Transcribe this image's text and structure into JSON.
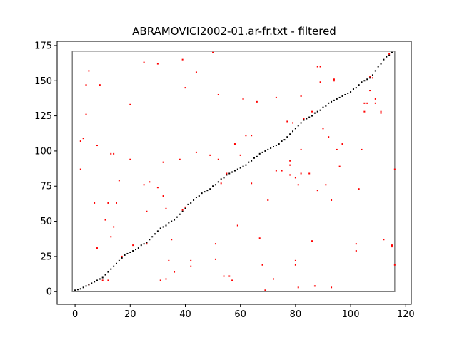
{
  "chart_data": {
    "type": "scatter",
    "title": "ABRAMOVICI2002-01.ar-fr.txt - filtered",
    "xlabel": "",
    "ylabel": "",
    "xlim": [
      -6.5,
      122
    ],
    "ylim": [
      -9,
      178
    ],
    "xticks": [
      0,
      20,
      40,
      60,
      80,
      100,
      120
    ],
    "yticks": [
      0,
      25,
      50,
      75,
      100,
      125,
      150,
      175
    ],
    "grid": false,
    "colors": {
      "alignment": "#000000",
      "candidates": "#ff0000",
      "box": "#808080"
    },
    "box": {
      "x": [
        -1,
        116
      ],
      "y": [
        0,
        171
      ]
    },
    "series": [
      {
        "values": [
          [
            0,
            1
          ],
          [
            1,
            1.5
          ],
          [
            2,
            2
          ],
          [
            3,
            3
          ],
          [
            4,
            4
          ],
          [
            5,
            5
          ],
          [
            6,
            6
          ],
          [
            7,
            7
          ],
          [
            8,
            8
          ],
          [
            9,
            9
          ],
          [
            10,
            10
          ],
          [
            11,
            12
          ],
          [
            12,
            14
          ],
          [
            13,
            16
          ],
          [
            14,
            18
          ],
          [
            15,
            20
          ],
          [
            16,
            22
          ],
          [
            17,
            24
          ],
          [
            18,
            26
          ],
          [
            19,
            27
          ],
          [
            20,
            28
          ],
          [
            21,
            29
          ],
          [
            22,
            30
          ],
          [
            23,
            31
          ],
          [
            24,
            33
          ],
          [
            25,
            34
          ],
          [
            26,
            35
          ],
          [
            27,
            37
          ],
          [
            28,
            39
          ],
          [
            29,
            41
          ],
          [
            30,
            43
          ],
          [
            31,
            45
          ],
          [
            32,
            46
          ],
          [
            33,
            47
          ],
          [
            34,
            49
          ],
          [
            35,
            50
          ],
          [
            36,
            51
          ],
          [
            37,
            53
          ],
          [
            38,
            55
          ],
          [
            39,
            57
          ],
          [
            40,
            59
          ],
          [
            41,
            62
          ],
          [
            42,
            63
          ],
          [
            43,
            65
          ],
          [
            44,
            67
          ],
          [
            45,
            68
          ],
          [
            46,
            70
          ],
          [
            47,
            71
          ],
          [
            48,
            72
          ],
          [
            49,
            73
          ],
          [
            50,
            75
          ],
          [
            51,
            76
          ],
          [
            52,
            78
          ],
          [
            53,
            80
          ],
          [
            54,
            81
          ],
          [
            55,
            83
          ],
          [
            56,
            84
          ],
          [
            57,
            85
          ],
          [
            58,
            86
          ],
          [
            59,
            87
          ],
          [
            60,
            88
          ],
          [
            61,
            89
          ],
          [
            62,
            90
          ],
          [
            63,
            92
          ],
          [
            64,
            93
          ],
          [
            65,
            95
          ],
          [
            66,
            96
          ],
          [
            67,
            98
          ],
          [
            68,
            99
          ],
          [
            69,
            100
          ],
          [
            70,
            101
          ],
          [
            71,
            102
          ],
          [
            72,
            103
          ],
          [
            73,
            104
          ],
          [
            74,
            105
          ],
          [
            75,
            107
          ],
          [
            76,
            108
          ],
          [
            77,
            110
          ],
          [
            78,
            112
          ],
          [
            79,
            114
          ],
          [
            80,
            116
          ],
          [
            81,
            118
          ],
          [
            82,
            120
          ],
          [
            83,
            122
          ],
          [
            84,
            123
          ],
          [
            85,
            124
          ],
          [
            86,
            125
          ],
          [
            87,
            127
          ],
          [
            88,
            128
          ],
          [
            89,
            129
          ],
          [
            90,
            131
          ],
          [
            91,
            132
          ],
          [
            92,
            134
          ],
          [
            93,
            135
          ],
          [
            94,
            136
          ],
          [
            95,
            137
          ],
          [
            96,
            138
          ],
          [
            97,
            139
          ],
          [
            98,
            140
          ],
          [
            99,
            141
          ],
          [
            100,
            142
          ],
          [
            101,
            144
          ],
          [
            102,
            145
          ],
          [
            103,
            147
          ],
          [
            104,
            149
          ],
          [
            105,
            150
          ],
          [
            106,
            151
          ],
          [
            107,
            152
          ],
          [
            108,
            154
          ],
          [
            109,
            157
          ],
          [
            110,
            160
          ],
          [
            111,
            162
          ],
          [
            112,
            165
          ],
          [
            113,
            167
          ],
          [
            114,
            168
          ],
          [
            115,
            170
          ]
        ]
      },
      {
        "values": [
          [
            2,
            87
          ],
          [
            2,
            107
          ],
          [
            3,
            109
          ],
          [
            4,
            147
          ],
          [
            4,
            126
          ],
          [
            5,
            5
          ],
          [
            5,
            157
          ],
          [
            7,
            63
          ],
          [
            8,
            104
          ],
          [
            8,
            31
          ],
          [
            9,
            147
          ],
          [
            10,
            8
          ],
          [
            11,
            51
          ],
          [
            12,
            8
          ],
          [
            12,
            63
          ],
          [
            13,
            39
          ],
          [
            13,
            98
          ],
          [
            14,
            98
          ],
          [
            14,
            46
          ],
          [
            15,
            63
          ],
          [
            16,
            79
          ],
          [
            17,
            25
          ],
          [
            20,
            133
          ],
          [
            20,
            94
          ],
          [
            21,
            33
          ],
          [
            25,
            163
          ],
          [
            25,
            76
          ],
          [
            26,
            57
          ],
          [
            26,
            34
          ],
          [
            27,
            78
          ],
          [
            30,
            162
          ],
          [
            30,
            74
          ],
          [
            31,
            8
          ],
          [
            32,
            92
          ],
          [
            32,
            68
          ],
          [
            33,
            9
          ],
          [
            33,
            59
          ],
          [
            34,
            22
          ],
          [
            35,
            37
          ],
          [
            36,
            14
          ],
          [
            38,
            94
          ],
          [
            39,
            165
          ],
          [
            39,
            58
          ],
          [
            40,
            145
          ],
          [
            40,
            60
          ],
          [
            42,
            18
          ],
          [
            42,
            22
          ],
          [
            44,
            156
          ],
          [
            44,
            99
          ],
          [
            49,
            97
          ],
          [
            50,
            170
          ],
          [
            51,
            34
          ],
          [
            51,
            23
          ],
          [
            52,
            140
          ],
          [
            52,
            94
          ],
          [
            53,
            77
          ],
          [
            54,
            11
          ],
          [
            55,
            84
          ],
          [
            56,
            11
          ],
          [
            57,
            8
          ],
          [
            58,
            105
          ],
          [
            59,
            47
          ],
          [
            60,
            97
          ],
          [
            61,
            137
          ],
          [
            62,
            111
          ],
          [
            64,
            111
          ],
          [
            64,
            77
          ],
          [
            66,
            135
          ],
          [
            67,
            38
          ],
          [
            68,
            19
          ],
          [
            69,
            1
          ],
          [
            70,
            65
          ],
          [
            72,
            9
          ],
          [
            73,
            138
          ],
          [
            73,
            86
          ],
          [
            75,
            86
          ],
          [
            77,
            121
          ],
          [
            78,
            93
          ],
          [
            78,
            90
          ],
          [
            78,
            83
          ],
          [
            79,
            120
          ],
          [
            80,
            22
          ],
          [
            80,
            19
          ],
          [
            80,
            81
          ],
          [
            81,
            76
          ],
          [
            81,
            3
          ],
          [
            82,
            101
          ],
          [
            82,
            139
          ],
          [
            82,
            84
          ],
          [
            83,
            123
          ],
          [
            85,
            84
          ],
          [
            86,
            36
          ],
          [
            86,
            128
          ],
          [
            87,
            4
          ],
          [
            88,
            72
          ],
          [
            88,
            160
          ],
          [
            89,
            160
          ],
          [
            89,
            149
          ],
          [
            90,
            116
          ],
          [
            91,
            76
          ],
          [
            92,
            110
          ],
          [
            93,
            65
          ],
          [
            93,
            3
          ],
          [
            94,
            150
          ],
          [
            94,
            151
          ],
          [
            95,
            101
          ],
          [
            96,
            89
          ],
          [
            97,
            105
          ],
          [
            102,
            34
          ],
          [
            102,
            29
          ],
          [
            103,
            73
          ],
          [
            104,
            101
          ],
          [
            105,
            128
          ],
          [
            105,
            134
          ],
          [
            106,
            134
          ],
          [
            107,
            143
          ],
          [
            107,
            153
          ],
          [
            108,
            152
          ],
          [
            109,
            137
          ],
          [
            109,
            134
          ],
          [
            111,
            127
          ],
          [
            111,
            128
          ],
          [
            112,
            37
          ],
          [
            114,
            169
          ],
          [
            115,
            33
          ],
          [
            115,
            32
          ],
          [
            116,
            87
          ],
          [
            116,
            19
          ]
        ]
      }
    ]
  }
}
